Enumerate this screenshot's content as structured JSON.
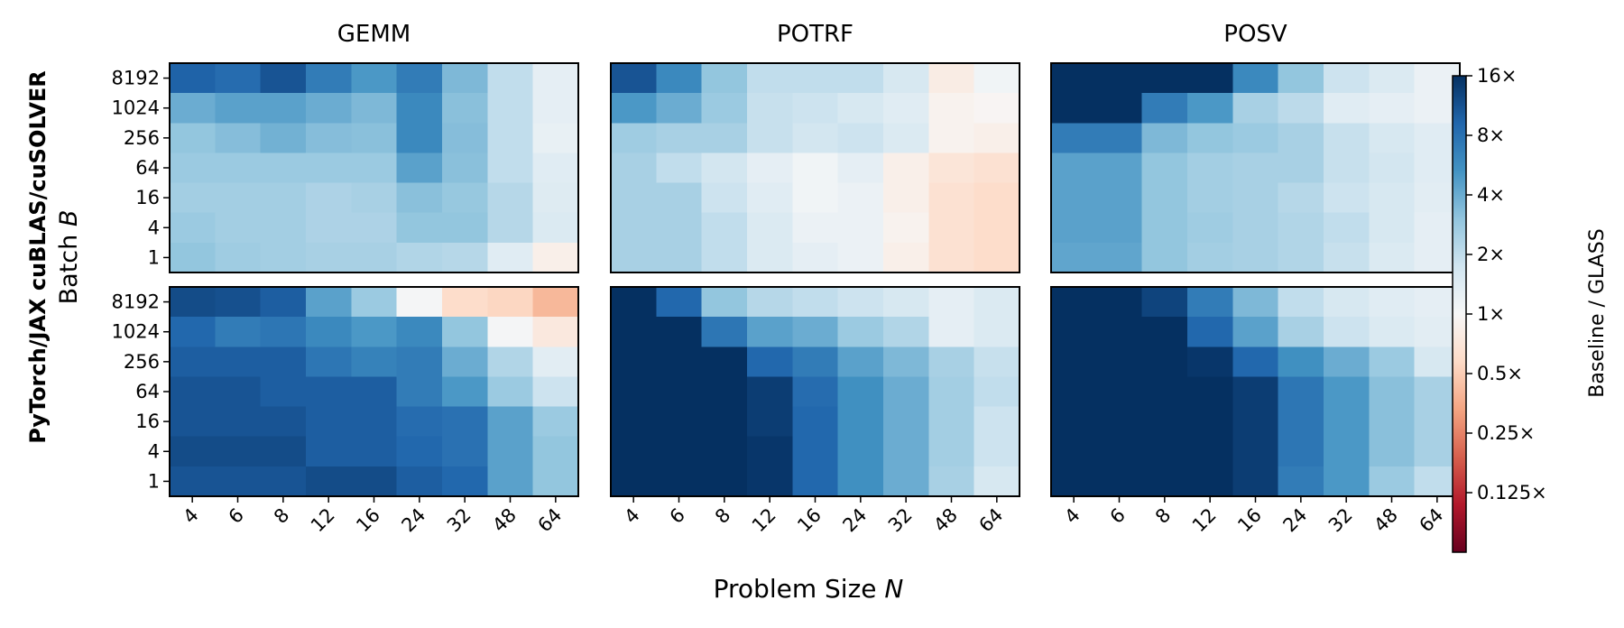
{
  "figure": {
    "ylabel_line1": "PyTorch/JAX cuBLAS/cuSOLVER",
    "ylabel_line2": "Batch ",
    "ylabel_var": "B",
    "xlabel": "Problem Size ",
    "xlabel_var": "N"
  },
  "colorbar": {
    "label": "Baseline / GLASS",
    "scale": "log2",
    "min": 0.0625,
    "max": 16,
    "cmap": "RdBu",
    "ticks": [
      {
        "value": 16,
        "label": "16×"
      },
      {
        "value": 8,
        "label": "8×"
      },
      {
        "value": 4,
        "label": "4×"
      },
      {
        "value": 2,
        "label": "2×"
      },
      {
        "value": 1,
        "label": "1×"
      },
      {
        "value": 0.5,
        "label": "0.5×"
      },
      {
        "value": 0.25,
        "label": "0.25×"
      },
      {
        "value": 0.125,
        "label": "0.125×"
      }
    ],
    "colors": [
      "#67001f",
      "#b2182b",
      "#d6604d",
      "#f4a582",
      "#fddbc7",
      "#f7f7f7",
      "#d1e5f0",
      "#92c5de",
      "#4393c3",
      "#2166ac",
      "#053061"
    ]
  },
  "chart_data": {
    "type": "heatmap",
    "x_categories": [
      "4",
      "6",
      "8",
      "12",
      "16",
      "24",
      "32",
      "48",
      "64"
    ],
    "y_categories": [
      "8192",
      "1024",
      "256",
      "64",
      "16",
      "4",
      "1"
    ],
    "columns": [
      "GEMM",
      "POTRF",
      "POSV"
    ],
    "panels": [
      {
        "column": "GEMM",
        "row": 0,
        "values": [
          [
            9.5,
            8.5,
            11,
            7,
            5,
            7,
            3.5,
            2,
            1.3
          ],
          [
            4,
            4.5,
            4.5,
            4,
            3.5,
            6,
            3.2,
            2,
            1.3
          ],
          [
            3,
            3.3,
            3.8,
            3.3,
            3.2,
            6,
            3.3,
            2,
            1.25
          ],
          [
            2.8,
            2.8,
            2.8,
            2.8,
            2.8,
            4.5,
            3.2,
            2,
            1.4
          ],
          [
            2.6,
            2.6,
            2.6,
            2.4,
            2.5,
            3.2,
            2.9,
            2.2,
            1.45
          ],
          [
            2.8,
            2.6,
            2.6,
            2.4,
            2.4,
            3,
            3,
            2.2,
            1.5
          ],
          [
            3,
            2.7,
            2.6,
            2.5,
            2.5,
            2.3,
            2.2,
            1.4,
            0.85
          ]
        ]
      },
      {
        "column": "POTRF",
        "row": 0,
        "values": [
          [
            11,
            6,
            3,
            2,
            2,
            2,
            1.6,
            0.8,
            1.1
          ],
          [
            5,
            4,
            2.8,
            1.9,
            1.8,
            1.6,
            1.4,
            0.9,
            0.95
          ],
          [
            2.7,
            2.5,
            2.5,
            1.9,
            1.7,
            1.8,
            1.5,
            0.9,
            0.85
          ],
          [
            2.5,
            2,
            1.7,
            1.3,
            1.1,
            1.3,
            0.85,
            0.7,
            0.65
          ],
          [
            2.5,
            2.5,
            1.8,
            1.4,
            1.1,
            1.2,
            0.85,
            0.65,
            0.6
          ],
          [
            2.5,
            2.5,
            2,
            1.5,
            1.2,
            1.2,
            0.9,
            0.65,
            0.6
          ],
          [
            2.5,
            2.5,
            2,
            1.5,
            1.3,
            1.2,
            0.85,
            0.65,
            0.6
          ]
        ]
      },
      {
        "column": "POSV",
        "row": 0,
        "values": [
          [
            20,
            20,
            20,
            16,
            6,
            3,
            1.8,
            1.5,
            1.2
          ],
          [
            20,
            20,
            7,
            5,
            2.5,
            2.1,
            1.4,
            1.3,
            1.2
          ],
          [
            7,
            7,
            3.5,
            3,
            2.8,
            2.5,
            1.9,
            1.6,
            1.4
          ],
          [
            4.5,
            4.5,
            3,
            2.6,
            2.5,
            2.5,
            1.9,
            1.7,
            1.4
          ],
          [
            4.5,
            4.5,
            3,
            2.6,
            2.5,
            2.2,
            1.8,
            1.6,
            1.35
          ],
          [
            4.5,
            4.5,
            3,
            2.7,
            2.5,
            2.3,
            2,
            1.6,
            1.3
          ],
          [
            4.3,
            4.3,
            3,
            2.6,
            2.5,
            2.3,
            1.9,
            1.5,
            1.3
          ]
        ]
      },
      {
        "column": "GEMM",
        "row": 1,
        "values": [
          [
            12,
            11.5,
            10,
            4.5,
            2.8,
            1.05,
            0.6,
            0.55,
            0.4
          ],
          [
            9,
            7,
            7.5,
            6,
            5,
            6,
            3,
            1.05,
            0.75
          ],
          [
            10,
            10,
            10,
            7.5,
            6.5,
            7,
            4,
            2.3,
            1.35
          ],
          [
            11,
            11,
            10,
            10,
            10,
            7,
            5,
            2.8,
            1.8
          ],
          [
            11,
            11,
            11,
            10,
            10,
            8.5,
            8,
            4.5,
            2.8
          ],
          [
            12,
            12,
            12,
            10,
            10,
            9,
            8,
            4.5,
            3
          ],
          [
            11,
            11,
            11,
            12,
            12,
            10,
            9,
            4.5,
            3
          ]
        ]
      },
      {
        "column": "POTRF",
        "row": 1,
        "values": [
          [
            20,
            9,
            3,
            2.2,
            2,
            1.8,
            1.6,
            1.3,
            1.5
          ],
          [
            20,
            20,
            7.5,
            4.5,
            4,
            2.8,
            2.3,
            1.3,
            1.5
          ],
          [
            20,
            20,
            20,
            9,
            7,
            4.5,
            3.5,
            2.5,
            1.9
          ],
          [
            20,
            20,
            20,
            14,
            8.5,
            5.5,
            4,
            2.6,
            2
          ],
          [
            20,
            20,
            20,
            14,
            9,
            5.5,
            4,
            2.6,
            1.8
          ],
          [
            20,
            20,
            20,
            15,
            9,
            5.5,
            4,
            2.6,
            1.8
          ],
          [
            20,
            20,
            20,
            15,
            9,
            5.5,
            4,
            2.5,
            1.6
          ]
        ]
      },
      {
        "column": "POSV",
        "row": 1,
        "values": [
          [
            20,
            20,
            13,
            7,
            3.5,
            2,
            1.6,
            1.4,
            1.3
          ],
          [
            20,
            20,
            20,
            9,
            4.5,
            2.5,
            1.8,
            1.5,
            1.35
          ],
          [
            20,
            20,
            20,
            15,
            9,
            5.5,
            4,
            2.8,
            1.6
          ],
          [
            20,
            20,
            20,
            20,
            14,
            7.5,
            5,
            3.2,
            2.5
          ],
          [
            20,
            20,
            20,
            20,
            14,
            7.5,
            5,
            3.2,
            2.5
          ],
          [
            20,
            20,
            20,
            20,
            14,
            7.5,
            5,
            3.2,
            2.5
          ],
          [
            20,
            20,
            20,
            20,
            14,
            7,
            5,
            2.8,
            2
          ]
        ]
      }
    ]
  }
}
